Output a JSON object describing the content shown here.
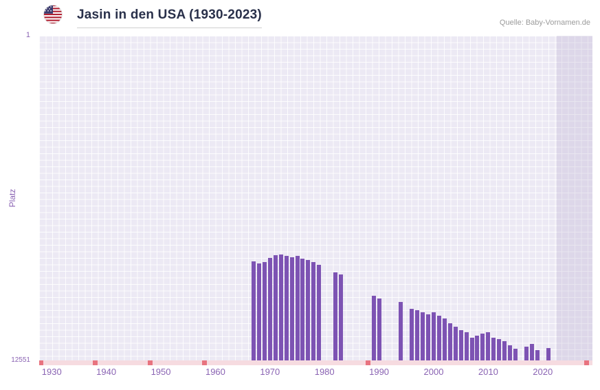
{
  "header": {
    "title": "Jasin in den USA (1930-2023)",
    "source": "Quelle: Baby-Vornamen.de"
  },
  "chart_data": {
    "type": "bar",
    "title": "Jasin in den USA (1930-2023)",
    "ylabel": "Platz",
    "y_axis": {
      "top_label": "1",
      "bottom_label": "12551",
      "min": 1,
      "max": 12551,
      "inverted": true
    },
    "x_domain": [
      1927.7,
      2029.1
    ],
    "x_ticks": [
      1930,
      1940,
      1950,
      1960,
      1970,
      1980,
      1990,
      2000,
      2010,
      2020
    ],
    "bar_color": "#7d53b3",
    "grid_background": "#ece9f4",
    "no_data_strip_color": "#f6dbe0",
    "no_data_marker_color": "#e8737f",
    "no_data_marker_years": [
      1928,
      1938,
      1948,
      1958,
      1988,
      2028
    ],
    "highlight_band": {
      "from": 2022.5,
      "to": 2029.1
    },
    "points": [
      [
        1967,
        8720
      ],
      [
        1968,
        8800
      ],
      [
        1969,
        8760
      ],
      [
        1970,
        8590
      ],
      [
        1971,
        8480
      ],
      [
        1972,
        8450
      ],
      [
        1973,
        8520
      ],
      [
        1974,
        8560
      ],
      [
        1975,
        8500
      ],
      [
        1976,
        8620
      ],
      [
        1977,
        8670
      ],
      [
        1978,
        8740
      ],
      [
        1979,
        8860
      ],
      [
        1982,
        9150
      ],
      [
        1983,
        9230
      ],
      [
        1989,
        10050
      ],
      [
        1990,
        10150
      ],
      [
        1994,
        10300
      ],
      [
        1996,
        10550
      ],
      [
        1997,
        10620
      ],
      [
        1998,
        10700
      ],
      [
        1999,
        10780
      ],
      [
        2000,
        10700
      ],
      [
        2001,
        10820
      ],
      [
        2002,
        10930
      ],
      [
        2003,
        11120
      ],
      [
        2004,
        11260
      ],
      [
        2005,
        11390
      ],
      [
        2006,
        11470
      ],
      [
        2007,
        11660
      ],
      [
        2008,
        11590
      ],
      [
        2009,
        11520
      ],
      [
        2010,
        11470
      ],
      [
        2011,
        11660
      ],
      [
        2012,
        11720
      ],
      [
        2013,
        11800
      ],
      [
        2014,
        11960
      ],
      [
        2015,
        12100
      ],
      [
        2017,
        12010
      ],
      [
        2018,
        11910
      ],
      [
        2019,
        12160
      ],
      [
        2021,
        12060
      ]
    ]
  }
}
